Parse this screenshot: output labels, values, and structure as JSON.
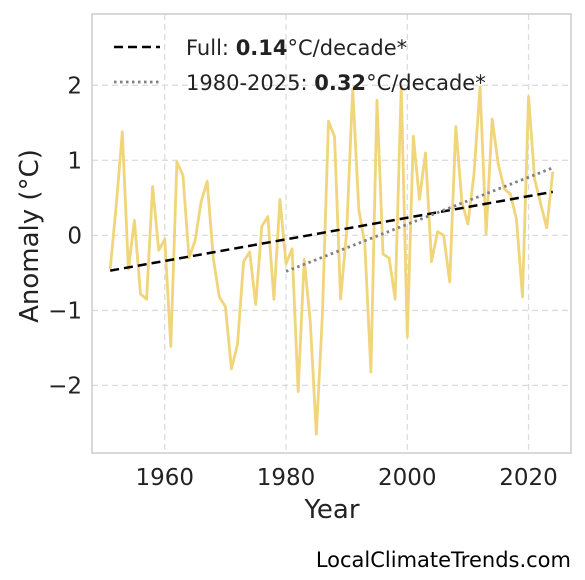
{
  "chart_data": {
    "type": "line",
    "title": "",
    "xlabel": "Year",
    "ylabel": "Anomaly (°C)",
    "xlim": [
      1948,
      2027
    ],
    "ylim": [
      -2.9,
      2.95
    ],
    "xticks": [
      1960,
      1980,
      2000,
      2020
    ],
    "yticks": [
      -2,
      -1,
      0,
      1,
      2
    ],
    "ytick_labels": [
      "−2",
      "−1",
      "0",
      "1",
      "2"
    ],
    "grid": true,
    "legend_position": "top-left",
    "series": [
      {
        "style": "solid",
        "color": "#f0d57a",
        "x": [
          1951,
          1952,
          1953,
          1954,
          1955,
          1956,
          1957,
          1958,
          1959,
          1960,
          1961,
          1962,
          1963,
          1964,
          1965,
          1966,
          1967,
          1968,
          1969,
          1970,
          1971,
          1972,
          1973,
          1974,
          1975,
          1976,
          1977,
          1978,
          1979,
          1980,
          1981,
          1982,
          1983,
          1984,
          1985,
          1986,
          1987,
          1988,
          1989,
          1990,
          1991,
          1992,
          1993,
          1994,
          1995,
          1996,
          1997,
          1998,
          1999,
          2000,
          2001,
          2002,
          2003,
          2004,
          2005,
          2006,
          2007,
          2008,
          2009,
          2010,
          2011,
          2012,
          2013,
          2014,
          2015,
          2016,
          2017,
          2018,
          2019,
          2020,
          2021,
          2022,
          2023,
          2024
        ],
        "values": [
          -0.45,
          0.4,
          1.38,
          -0.45,
          0.2,
          -0.78,
          -0.85,
          0.65,
          -0.2,
          -0.05,
          -1.48,
          0.98,
          0.8,
          -0.3,
          -0.07,
          0.45,
          0.72,
          -0.3,
          -0.82,
          -0.95,
          -1.78,
          -1.45,
          -0.35,
          -0.22,
          -0.92,
          0.12,
          0.25,
          -0.85,
          0.48,
          -0.38,
          -0.18,
          -2.08,
          -0.32,
          -1.15,
          -2.65,
          -1.05,
          1.52,
          1.32,
          -0.85,
          0.05,
          1.95,
          0.35,
          -0.12,
          -1.82,
          1.8,
          -0.25,
          -0.3,
          -0.85,
          1.98,
          -1.35,
          1.32,
          0.48,
          1.1,
          -0.35,
          0.05,
          0.0,
          -0.62,
          1.45,
          0.45,
          0.15,
          0.82,
          1.98,
          0.02,
          1.55,
          0.95,
          0.62,
          0.55,
          0.22,
          -0.82,
          1.85,
          0.75,
          0.42,
          0.1,
          0.85
        ]
      },
      {
        "name": "Full",
        "style": "dashed",
        "color": "#000000",
        "x": [
          1951,
          2024
        ],
        "values": [
          -0.47,
          0.58
        ],
        "rate": "0.14",
        "unit": "°C/decade*"
      },
      {
        "name": "1980-2025",
        "style": "dotted",
        "color": "#808080",
        "x": [
          1980,
          2024
        ],
        "values": [
          -0.48,
          0.9
        ],
        "rate": "0.32",
        "unit": "°C/decade*"
      }
    ]
  },
  "credit": "LocalClimateTrends.com"
}
